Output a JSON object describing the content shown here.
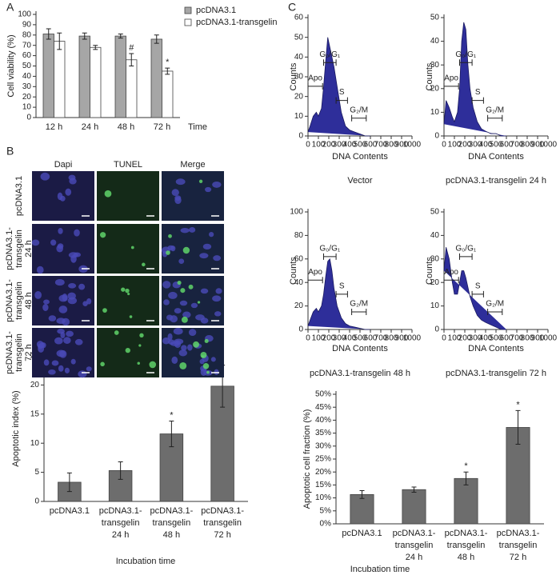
{
  "chart_data": [
    {
      "type": "bar",
      "panel": "A",
      "ylabel": "Cell viability (%)",
      "xlabel": "Time",
      "categories": [
        "12 h",
        "24 h",
        "48 h",
        "72 h"
      ],
      "series": [
        {
          "name": "pcDNA3.1",
          "color": "#a6a6a6",
          "values": [
            81,
            79,
            79,
            76
          ],
          "errors": [
            5,
            3,
            2,
            4
          ]
        },
        {
          "name": "pcDNA3.1-transgelin",
          "color": "#ffffff",
          "values": [
            74,
            68,
            56,
            45
          ],
          "errors": [
            8,
            2,
            6,
            3
          ],
          "markers": [
            null,
            null,
            "#",
            "*"
          ]
        }
      ],
      "ylim": [
        0,
        100
      ],
      "yticks": [
        0,
        10,
        20,
        30,
        40,
        50,
        60,
        70,
        80,
        90,
        100
      ]
    },
    {
      "type": "bar",
      "ylabel": "Apoptotic index (%)",
      "xlabel": "Incubation time",
      "categories": [
        [
          "pcDNA3.1"
        ],
        [
          "pcDNA3.1-",
          "transgelin",
          "24 h"
        ],
        [
          "pcDNA3.1-",
          "transgelin",
          "48 h"
        ],
        [
          "pcDNA3.1-",
          "transgelin",
          "72 h"
        ]
      ],
      "series": [
        {
          "color": "#6d6d6d",
          "values": [
            3.3,
            5.3,
            11.6,
            19.8
          ],
          "errors": [
            1.6,
            1.5,
            2.2,
            3.6
          ],
          "markers": [
            null,
            null,
            "*",
            "*"
          ]
        }
      ],
      "ylim": [
        0,
        25
      ],
      "yticks": [
        0,
        5,
        10,
        15,
        20,
        25
      ]
    },
    {
      "type": "area",
      "panel": "C",
      "ylabel": "Counts",
      "xlabel": "DNA Contents",
      "caption": "Vector",
      "color": "#2e2e9a",
      "x": [
        0,
        20,
        50,
        80,
        100,
        130,
        150,
        170,
        190,
        210,
        230,
        250,
        280,
        320,
        360,
        400,
        450,
        500,
        550,
        600
      ],
      "values": [
        2,
        5,
        10,
        12,
        10,
        14,
        25,
        38,
        50,
        45,
        40,
        35,
        25,
        12,
        5,
        3,
        2,
        1,
        0,
        0
      ],
      "gates": [
        "Apo",
        "G₀/G₁",
        "S",
        "G₂/M"
      ],
      "xlim": [
        0,
        1000
      ],
      "xticks": [
        0,
        100,
        200,
        300,
        400,
        500,
        600,
        700,
        800,
        900,
        1000
      ],
      "ylim": [
        0,
        60
      ],
      "yticks": [
        0,
        10,
        20,
        30,
        40,
        50,
        60
      ]
    },
    {
      "type": "area",
      "ylabel": "Counts",
      "xlabel": "DNA Contents",
      "caption": "pcDNA3.1-transgelin 24 h",
      "color": "#2e2e9a",
      "x": [
        0,
        20,
        50,
        80,
        100,
        130,
        150,
        170,
        190,
        210,
        230,
        250,
        280,
        320,
        360,
        400,
        450,
        500,
        550,
        600
      ],
      "values": [
        5,
        15,
        12,
        8,
        6,
        10,
        20,
        40,
        48,
        45,
        30,
        20,
        12,
        6,
        3,
        2,
        1,
        1,
        0,
        0
      ],
      "gates": [
        "Apo",
        "G₀/G₁",
        "S",
        "G₂/M"
      ],
      "xlim": [
        0,
        1000
      ],
      "xticks": [
        0,
        100,
        200,
        300,
        400,
        500,
        600,
        700,
        800,
        900,
        1000
      ],
      "ylim": [
        0,
        50
      ],
      "yticks": [
        0,
        10,
        20,
        30,
        40,
        50
      ]
    },
    {
      "type": "area",
      "ylabel": "Counts",
      "xlabel": "DNA Contents",
      "caption": "pcDNA3.1-transgelin 48 h",
      "color": "#2e2e9a",
      "x": [
        0,
        20,
        50,
        80,
        100,
        130,
        150,
        170,
        190,
        210,
        230,
        250,
        280,
        320,
        360,
        400,
        450,
        500,
        550,
        600
      ],
      "values": [
        3,
        8,
        15,
        18,
        15,
        20,
        30,
        45,
        58,
        60,
        50,
        35,
        20,
        10,
        5,
        3,
        2,
        1,
        0,
        0
      ],
      "gates": [
        "Apo",
        "G₀/G₁",
        "S",
        "G₂/M"
      ],
      "xlim": [
        0,
        1000
      ],
      "xticks": [
        0,
        100,
        200,
        300,
        400,
        500,
        600,
        700,
        800,
        900,
        1000
      ],
      "ylim": [
        0,
        100
      ],
      "yticks": [
        0,
        20,
        40,
        60,
        80,
        100
      ]
    },
    {
      "type": "area",
      "ylabel": "Counts",
      "xlabel": "DNA Contents",
      "caption": "pcDNA3.1-transgelin 72 h",
      "color": "#2e2e9a",
      "x": [
        0,
        20,
        50,
        80,
        100,
        130,
        150,
        170,
        190,
        210,
        230,
        250,
        280,
        320,
        360,
        400,
        450,
        500,
        550,
        600
      ],
      "values": [
        25,
        35,
        30,
        20,
        15,
        15,
        20,
        25,
        25,
        22,
        18,
        14,
        10,
        6,
        4,
        3,
        2,
        1,
        0,
        0
      ],
      "gates": [
        "Apo",
        "G₀/G₁",
        "S",
        "G₂/M"
      ],
      "xlim": [
        0,
        1000
      ],
      "xticks": [
        0,
        100,
        200,
        300,
        400,
        500,
        600,
        700,
        800,
        900,
        1000
      ],
      "ylim": [
        0,
        50
      ],
      "yticks": [
        0,
        10,
        20,
        30,
        40,
        50
      ]
    },
    {
      "type": "bar",
      "ylabel": "Apoptotic cell fraction (%)",
      "xlabel": "Incubation time",
      "categories": [
        [
          "pcDNA3.1"
        ],
        [
          "pcDNA3.1-",
          "transgelin",
          "24 h"
        ],
        [
          "pcDNA3.1-",
          "transgelin",
          "48 h"
        ],
        [
          "pcDNA3.1-",
          "transgelin",
          "72 h"
        ]
      ],
      "series": [
        {
          "color": "#6d6d6d",
          "values": [
            11.3,
            13.2,
            17.5,
            37.2
          ],
          "errors": [
            1.5,
            1,
            2.5,
            6.5
          ],
          "markers": [
            null,
            null,
            "*",
            "*"
          ]
        }
      ],
      "ylim": [
        0,
        50
      ],
      "yticks": [
        {
          "value": 0,
          "label": "0%"
        },
        {
          "value": 5,
          "label": "5%"
        },
        {
          "value": 10,
          "label": "10%"
        },
        {
          "value": 15,
          "label": "15%"
        },
        {
          "value": 20,
          "label": "20%"
        },
        {
          "value": 25,
          "label": "25%"
        },
        {
          "value": 30,
          "label": "30%"
        },
        {
          "value": 35,
          "label": "35%"
        },
        {
          "value": 40,
          "label": "40%"
        },
        {
          "value": 45,
          "label": "45%"
        },
        {
          "value": 50,
          "label": "50%"
        }
      ]
    }
  ],
  "micrographs": {
    "panel": "B",
    "columns": [
      "Dapi",
      "TUNEL",
      "Merge"
    ],
    "rows": [
      [
        "pcDNA3.1"
      ],
      [
        "pcDNA3.1-",
        "transgelin",
        "24 h"
      ],
      [
        "pcDNA3.1-",
        "transgelin",
        "48 h"
      ],
      [
        "pcDNA3.1-",
        "transgelin",
        "72 h"
      ]
    ]
  }
}
